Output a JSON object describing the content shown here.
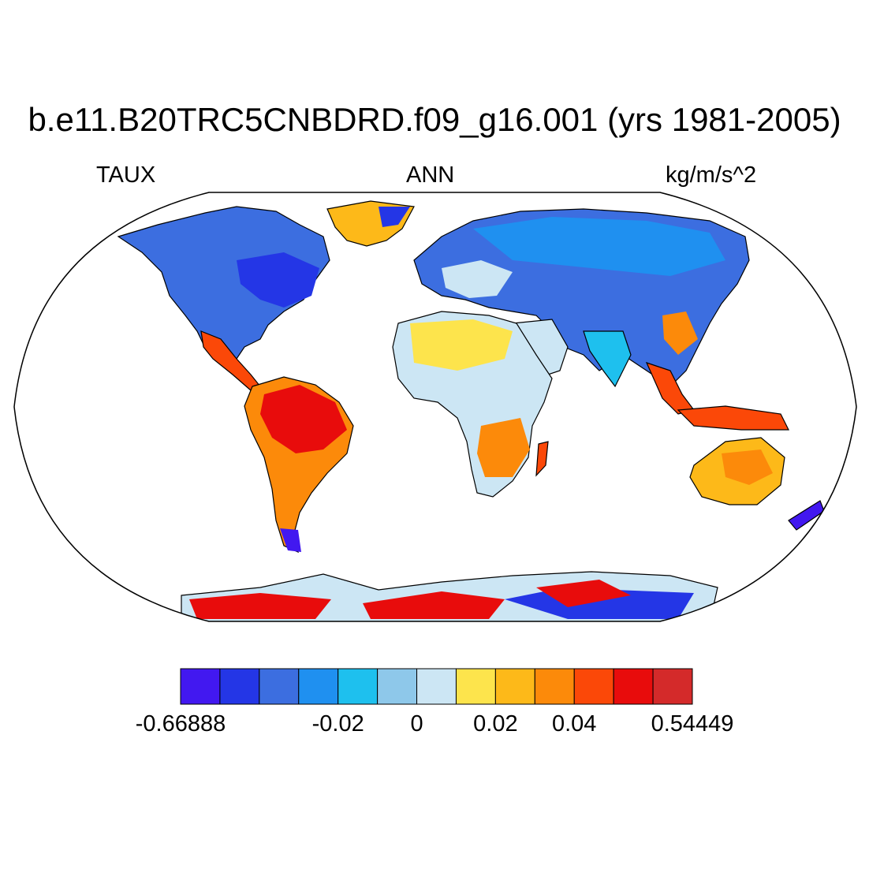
{
  "title": "b.e11.B20TRC5CNBDRD.f09_g16.001 (yrs 1981-2005)",
  "left_string": "TAUX",
  "center_string": "ANN",
  "right_string": "kg/m/s^2",
  "colorbar": {
    "colors": [
      "#4218f0",
      "#2436e6",
      "#3c6ee0",
      "#1f90f0",
      "#1ec0ee",
      "#8ec8ea",
      "#cce6f4",
      "#fde44c",
      "#fdb919",
      "#fc8a0a",
      "#fb4808",
      "#e80c0c",
      "#d42a2a"
    ],
    "labels": [
      "-0.66888",
      "-0.02",
      "0",
      "0.02",
      "0.04",
      "0.54449"
    ]
  },
  "map": {
    "projection": "Robinson",
    "land_only": true,
    "coastlines": true
  }
}
